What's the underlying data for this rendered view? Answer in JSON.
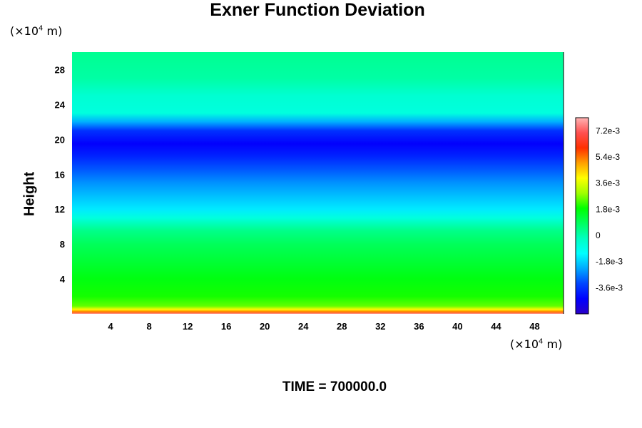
{
  "chart_data": {
    "type": "heatmap",
    "title": "Exner Function Deviation",
    "ylabel": "Height",
    "y_unit": {
      "prefix": "(×10",
      "exp": "4",
      "suffix": " m)"
    },
    "x_unit": {
      "prefix": "(×10",
      "exp": "4",
      "suffix": " m)"
    },
    "xlim": [
      0,
      51
    ],
    "ylim": [
      0,
      30
    ],
    "x_ticks": [
      "4",
      "8",
      "12",
      "16",
      "20",
      "24",
      "28",
      "32",
      "36",
      "40",
      "44",
      "48"
    ],
    "y_ticks": [
      "4",
      "8",
      "12",
      "16",
      "20",
      "24",
      "28"
    ],
    "y_profile": [
      {
        "y": 0.0,
        "value": 0.0078
      },
      {
        "y": 0.2,
        "value": 0.0055
      },
      {
        "y": 0.5,
        "value": 0.004
      },
      {
        "y": 0.9,
        "value": 0.0025
      },
      {
        "y": 2.0,
        "value": 0.002
      },
      {
        "y": 4.0,
        "value": 0.0017
      },
      {
        "y": 6.0,
        "value": 0.0013
      },
      {
        "y": 8.0,
        "value": 0.0009
      },
      {
        "y": 9.5,
        "value": 0.0004
      },
      {
        "y": 11.0,
        "value": -0.0007
      },
      {
        "y": 12.0,
        "value": -0.0015
      },
      {
        "y": 13.5,
        "value": -0.002
      },
      {
        "y": 15.0,
        "value": -0.0025
      },
      {
        "y": 16.5,
        "value": -0.0031
      },
      {
        "y": 18.0,
        "value": -0.0038
      },
      {
        "y": 19.5,
        "value": -0.0044
      },
      {
        "y": 21.0,
        "value": -0.0036
      },
      {
        "y": 22.0,
        "value": -0.0022
      },
      {
        "y": 23.0,
        "value": -0.0007
      },
      {
        "y": 25.0,
        "value": -0.0005
      },
      {
        "y": 27.0,
        "value": 0.0001
      },
      {
        "y": 30.0,
        "value": 0.0003
      }
    ],
    "colorbar": {
      "min": -0.0054,
      "max": 0.0081,
      "labels": [
        "7.2e-3",
        "5.4e-3",
        "3.6e-3",
        "1.8e-3",
        "0",
        "-1.8e-3",
        "-3.6e-3"
      ],
      "label_values": [
        0.0072,
        0.0054,
        0.0036,
        0.0018,
        0,
        -0.0018,
        -0.0036
      ]
    },
    "colors": {
      "stops": [
        "#2a00c8",
        "#0000ff",
        "#0044ff",
        "#00a8ff",
        "#00ffff",
        "#00ffc0",
        "#00ff60",
        "#00ff00",
        "#a0ff00",
        "#ffff00",
        "#ffa000",
        "#ff3000",
        "#ff5050",
        "#ffb4b4"
      ]
    }
  },
  "time_label": "TIME = 700000.0"
}
